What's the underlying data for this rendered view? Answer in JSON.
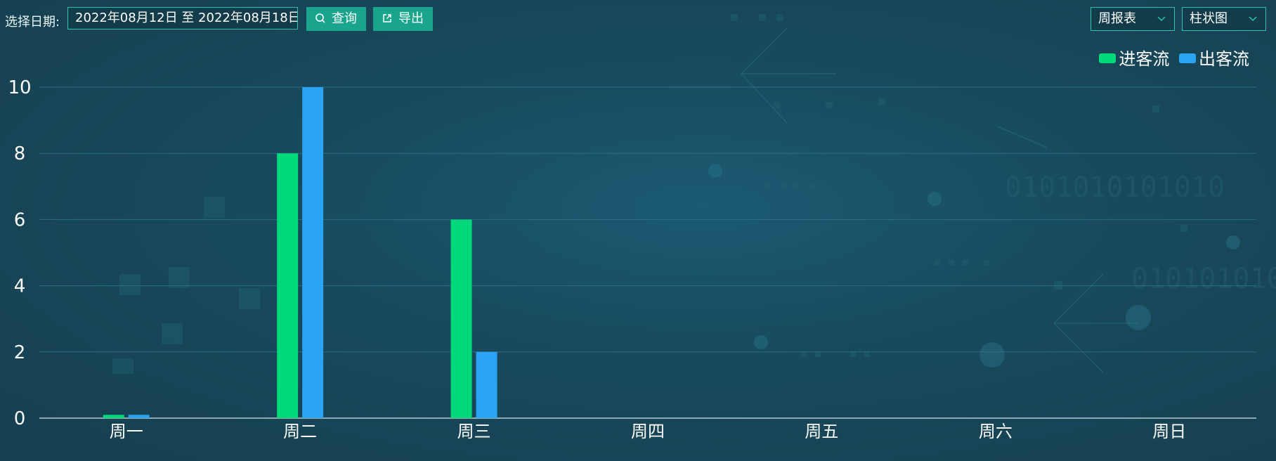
{
  "toolbar": {
    "date_label": "选择日期:",
    "date_range": "2022年08月12日 至 2022年08月18日",
    "query_label": "查询",
    "export_label": "导出",
    "report_select": "周报表",
    "chart_type_select": "柱状图"
  },
  "icons": {
    "query": "search-icon",
    "export": "external-link-icon",
    "dropdown": "chevron-down-icon"
  },
  "colors": {
    "in_flow": "#00d97a",
    "out_flow": "#2aa5f5",
    "accent": "#18a48d"
  },
  "chart_data": {
    "type": "bar",
    "categories": [
      "周一",
      "周二",
      "周三",
      "周四",
      "周五",
      "周六",
      "周日"
    ],
    "series": [
      {
        "name": "进客流",
        "values": [
          0.1,
          8,
          6,
          0,
          0,
          0,
          0
        ]
      },
      {
        "name": "出客流",
        "values": [
          0.1,
          10,
          2,
          0,
          0,
          0,
          0
        ]
      }
    ],
    "ylim": [
      0,
      10
    ],
    "yticks": [
      "0",
      "2",
      "4",
      "6",
      "8",
      "10"
    ],
    "grid": true,
    "legend": "top-right"
  }
}
